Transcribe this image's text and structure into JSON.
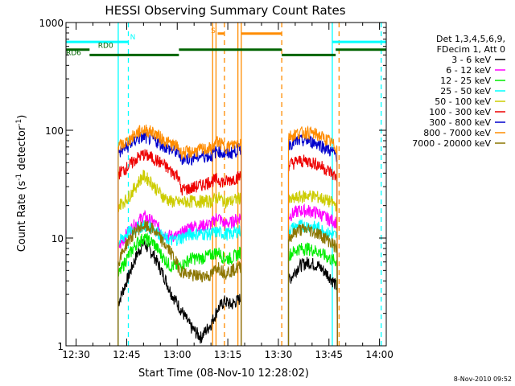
{
  "chart_data": {
    "type": "line",
    "title": "HESSI Observing Summary Count Rates",
    "xlabel": "Start Time (08-Nov-10 12:28:02)",
    "ylabel_main": "Count Rate (s",
    "ylabel_sup1": "-1",
    "ylabel_mid": " detector",
    "ylabel_sup2": "-1",
    "ylabel_end": ")",
    "yscale": "log",
    "ylim": [
      1,
      1000
    ],
    "xlim_minutes": [
      -3,
      92
    ],
    "xticks": [
      {
        "m": 0,
        "label": "12:30"
      },
      {
        "m": 15,
        "label": "12:45"
      },
      {
        "m": 30,
        "label": "13:00"
      },
      {
        "m": 45,
        "label": "13:15"
      },
      {
        "m": 60,
        "label": "13:30"
      },
      {
        "m": 75,
        "label": "13:45"
      },
      {
        "m": 90,
        "label": "14:00"
      }
    ],
    "yticks": [
      {
        "v": 1,
        "label": "1"
      },
      {
        "v": 10,
        "label": "10"
      },
      {
        "v": 100,
        "label": "100"
      },
      {
        "v": 1000,
        "label": "1000"
      }
    ],
    "legend": {
      "placement": "right",
      "header": [
        "Det 1,3,4,5,6,9,",
        "FDecim 1, Att 0"
      ],
      "entries": [
        {
          "label": "3 - 6 keV",
          "color": "#000000"
        },
        {
          "label": "6 - 12 keV",
          "color": "#ff00ff"
        },
        {
          "label": "12 - 25 keV",
          "color": "#00ee00"
        },
        {
          "label": "25 - 50 keV",
          "color": "#00ffff"
        },
        {
          "label": "50 - 100 keV",
          "color": "#cccc00"
        },
        {
          "label": "100 - 300 keV",
          "color": "#ee0000"
        },
        {
          "label": "300 - 800 keV",
          "color": "#0000cc"
        },
        {
          "label": "800 - 7000 keV",
          "color": "#ff8c00"
        },
        {
          "label": "7000 - 20000 keV",
          "color": "#8b7500"
        }
      ]
    },
    "series": [
      {
        "name": "3 - 6 keV",
        "color": "#000000",
        "values": [
          {
            "m": 12.5,
            "v": 2.5
          },
          {
            "m": 15,
            "v": 4
          },
          {
            "m": 18,
            "v": 7
          },
          {
            "m": 20,
            "v": 9
          },
          {
            "m": 23,
            "v": 7
          },
          {
            "m": 26,
            "v": 4.5
          },
          {
            "m": 28,
            "v": 3.2
          },
          {
            "m": 31,
            "v": 2.2
          },
          {
            "m": 34,
            "v": 1.5
          },
          {
            "m": 37,
            "v": 1.2
          },
          {
            "m": 40,
            "v": 1.6
          },
          {
            "m": 42,
            "v": 2.2
          },
          {
            "m": 44,
            "v": 2.6
          },
          {
            "m": 46,
            "v": 2.4
          },
          {
            "m": 49,
            "v": 2.8
          },
          {
            "m": 63,
            "v": 4
          },
          {
            "m": 66,
            "v": 5.5
          },
          {
            "m": 69,
            "v": 6
          },
          {
            "m": 72,
            "v": 5.5
          },
          {
            "m": 75,
            "v": 4.5
          },
          {
            "m": 77.5,
            "v": 3.5
          }
        ]
      },
      {
        "name": "6 - 12 keV",
        "color": "#ff00ff",
        "values": [
          {
            "m": 12.5,
            "v": 8
          },
          {
            "m": 15,
            "v": 11
          },
          {
            "m": 18,
            "v": 14
          },
          {
            "m": 20,
            "v": 16
          },
          {
            "m": 23,
            "v": 14
          },
          {
            "m": 26,
            "v": 11
          },
          {
            "m": 28,
            "v": 10.5
          },
          {
            "m": 30.5,
            "v": 10.5
          },
          {
            "m": 34,
            "v": 13
          },
          {
            "m": 37,
            "v": 13
          },
          {
            "m": 40,
            "v": 13.5
          },
          {
            "m": 42,
            "v": 16
          },
          {
            "m": 44,
            "v": 13.5
          },
          {
            "m": 46,
            "v": 14
          },
          {
            "m": 49,
            "v": 16
          },
          {
            "m": 63,
            "v": 16
          },
          {
            "m": 66,
            "v": 18
          },
          {
            "m": 69,
            "v": 18
          },
          {
            "m": 72,
            "v": 17
          },
          {
            "m": 75,
            "v": 15
          },
          {
            "m": 77.5,
            "v": 14
          }
        ]
      },
      {
        "name": "12 - 25 keV",
        "color": "#00ee00",
        "values": [
          {
            "m": 12.5,
            "v": 4.5
          },
          {
            "m": 15,
            "v": 6.5
          },
          {
            "m": 18,
            "v": 9
          },
          {
            "m": 20,
            "v": 10
          },
          {
            "m": 23,
            "v": 9
          },
          {
            "m": 26,
            "v": 6.5
          },
          {
            "m": 28,
            "v": 5.5
          },
          {
            "m": 31,
            "v": 5.5
          },
          {
            "m": 34,
            "v": 6.5
          },
          {
            "m": 37,
            "v": 6.5
          },
          {
            "m": 40,
            "v": 7
          },
          {
            "m": 42,
            "v": 7.5
          },
          {
            "m": 44,
            "v": 6.5
          },
          {
            "m": 46,
            "v": 6.5
          },
          {
            "m": 49,
            "v": 7.5
          },
          {
            "m": 63,
            "v": 7
          },
          {
            "m": 66,
            "v": 8
          },
          {
            "m": 69,
            "v": 8
          },
          {
            "m": 72,
            "v": 7.5
          },
          {
            "m": 75,
            "v": 6.5
          },
          {
            "m": 77.5,
            "v": 6
          }
        ]
      },
      {
        "name": "25 - 50 keV",
        "color": "#00ffff",
        "values": [
          {
            "m": 12.5,
            "v": 9
          },
          {
            "m": 15,
            "v": 11
          },
          {
            "m": 18,
            "v": 12.5
          },
          {
            "m": 20,
            "v": 13
          },
          {
            "m": 23,
            "v": 12.5
          },
          {
            "m": 26,
            "v": 10
          },
          {
            "m": 28,
            "v": 9.5
          },
          {
            "m": 31,
            "v": 10
          },
          {
            "m": 34,
            "v": 11
          },
          {
            "m": 37,
            "v": 11
          },
          {
            "m": 40,
            "v": 11
          },
          {
            "m": 42,
            "v": 11.5
          },
          {
            "m": 44,
            "v": 11
          },
          {
            "m": 46,
            "v": 11
          },
          {
            "m": 49,
            "v": 12
          },
          {
            "m": 63,
            "v": 12
          },
          {
            "m": 66,
            "v": 13
          },
          {
            "m": 69,
            "v": 13
          },
          {
            "m": 72,
            "v": 12.5
          },
          {
            "m": 75,
            "v": 11
          },
          {
            "m": 77.5,
            "v": 10.5
          }
        ]
      },
      {
        "name": "50 - 100 keV",
        "color": "#cccc00",
        "values": [
          {
            "m": 12.5,
            "v": 20
          },
          {
            "m": 15,
            "v": 23
          },
          {
            "m": 17,
            "v": 28
          },
          {
            "m": 19,
            "v": 35
          },
          {
            "m": 20,
            "v": 38
          },
          {
            "m": 22,
            "v": 34
          },
          {
            "m": 24,
            "v": 28
          },
          {
            "m": 26,
            "v": 24
          },
          {
            "m": 28,
            "v": 22
          },
          {
            "m": 30.5,
            "v": 21.5
          },
          {
            "m": 34,
            "v": 22
          },
          {
            "m": 37,
            "v": 22
          },
          {
            "m": 40,
            "v": 22
          },
          {
            "m": 42,
            "v": 24
          },
          {
            "m": 44,
            "v": 22
          },
          {
            "m": 46,
            "v": 22
          },
          {
            "m": 49,
            "v": 24
          },
          {
            "m": 63,
            "v": 22
          },
          {
            "m": 66,
            "v": 24
          },
          {
            "m": 69,
            "v": 25
          },
          {
            "m": 72,
            "v": 24
          },
          {
            "m": 75,
            "v": 22
          },
          {
            "m": 77.5,
            "v": 20
          }
        ]
      },
      {
        "name": "100 - 300 keV",
        "color": "#ee0000",
        "values": [
          {
            "m": 12.5,
            "v": 40
          },
          {
            "m": 15,
            "v": 45
          },
          {
            "m": 18,
            "v": 55
          },
          {
            "m": 20,
            "v": 60
          },
          {
            "m": 23,
            "v": 55
          },
          {
            "m": 26,
            "v": 48
          },
          {
            "m": 28,
            "v": 42
          },
          {
            "m": 30.5,
            "v": 38
          },
          {
            "m": 31,
            "v": 28
          },
          {
            "m": 34,
            "v": 29
          },
          {
            "m": 37,
            "v": 31
          },
          {
            "m": 40,
            "v": 34
          },
          {
            "m": 42,
            "v": 35
          },
          {
            "m": 44,
            "v": 33
          },
          {
            "m": 46,
            "v": 35
          },
          {
            "m": 49,
            "v": 38
          },
          {
            "m": 63,
            "v": 48
          },
          {
            "m": 66,
            "v": 52
          },
          {
            "m": 69,
            "v": 52
          },
          {
            "m": 72,
            "v": 48
          },
          {
            "m": 75,
            "v": 42
          },
          {
            "m": 77.5,
            "v": 36
          }
        ]
      },
      {
        "name": "300 - 800 keV",
        "color": "#0000cc",
        "values": [
          {
            "m": 12.5,
            "v": 62
          },
          {
            "m": 15,
            "v": 70
          },
          {
            "m": 18,
            "v": 83
          },
          {
            "m": 20,
            "v": 87
          },
          {
            "m": 23,
            "v": 82
          },
          {
            "m": 26,
            "v": 72
          },
          {
            "m": 28,
            "v": 66
          },
          {
            "m": 30.5,
            "v": 62
          },
          {
            "m": 31,
            "v": 55
          },
          {
            "m": 34,
            "v": 55
          },
          {
            "m": 37,
            "v": 58
          },
          {
            "m": 40,
            "v": 58
          },
          {
            "m": 42,
            "v": 66
          },
          {
            "m": 44,
            "v": 60
          },
          {
            "m": 46,
            "v": 62
          },
          {
            "m": 49,
            "v": 68
          },
          {
            "m": 63,
            "v": 75
          },
          {
            "m": 66,
            "v": 80
          },
          {
            "m": 69,
            "v": 80
          },
          {
            "m": 72,
            "v": 75
          },
          {
            "m": 75,
            "v": 66
          },
          {
            "m": 77.5,
            "v": 58
          }
        ]
      },
      {
        "name": "800 - 7000 keV",
        "color": "#ff8c00",
        "values": [
          {
            "m": 12.5,
            "v": 70
          },
          {
            "m": 15,
            "v": 78
          },
          {
            "m": 18,
            "v": 95
          },
          {
            "m": 20,
            "v": 102
          },
          {
            "m": 23,
            "v": 96
          },
          {
            "m": 26,
            "v": 82
          },
          {
            "m": 28,
            "v": 75
          },
          {
            "m": 30.5,
            "v": 70
          },
          {
            "m": 31,
            "v": 62
          },
          {
            "m": 34,
            "v": 63
          },
          {
            "m": 37,
            "v": 66
          },
          {
            "m": 40,
            "v": 68
          },
          {
            "m": 42,
            "v": 80
          },
          {
            "m": 44,
            "v": 70
          },
          {
            "m": 46,
            "v": 72
          },
          {
            "m": 49,
            "v": 80
          },
          {
            "m": 63,
            "v": 88
          },
          {
            "m": 66,
            "v": 95
          },
          {
            "m": 69,
            "v": 96
          },
          {
            "m": 72,
            "v": 90
          },
          {
            "m": 75,
            "v": 80
          },
          {
            "m": 77.5,
            "v": 68
          }
        ]
      },
      {
        "name": "7000 - 20000 keV",
        "color": "#8b7500",
        "values": [
          {
            "m": 12.5,
            "v": 6
          },
          {
            "m": 15,
            "v": 9
          },
          {
            "m": 18,
            "v": 12
          },
          {
            "m": 20,
            "v": 13
          },
          {
            "m": 23,
            "v": 12
          },
          {
            "m": 26,
            "v": 9
          },
          {
            "m": 28,
            "v": 7.5
          },
          {
            "m": 31,
            "v": 5
          },
          {
            "m": 34,
            "v": 4.5
          },
          {
            "m": 37,
            "v": 4.5
          },
          {
            "m": 40,
            "v": 4.5
          },
          {
            "m": 42,
            "v": 5.5
          },
          {
            "m": 44,
            "v": 4.8
          },
          {
            "m": 46,
            "v": 5
          },
          {
            "m": 49,
            "v": 5.5
          },
          {
            "m": 63,
            "v": 10
          },
          {
            "m": 66,
            "v": 12
          },
          {
            "m": 69,
            "v": 12
          },
          {
            "m": 72,
            "v": 11
          },
          {
            "m": 75,
            "v": 9.5
          },
          {
            "m": 77.5,
            "v": 8
          }
        ]
      }
    ],
    "annotations": [
      {
        "text": "RD0",
        "m": 6.5,
        "v": 580,
        "color": "#006400"
      },
      {
        "text": "RD6",
        "m": -3,
        "v": 500,
        "color": "#006400"
      },
      {
        "text": "N",
        "m": 16,
        "v": 700,
        "color": "#00ffff"
      },
      {
        "text": "S",
        "m": 40,
        "v": 800,
        "color": "#ff8c00"
      }
    ],
    "status_segments": [
      {
        "color": "#00ffff",
        "v": 660,
        "from": -3,
        "to": 15.5
      },
      {
        "color": "#00ffff",
        "v": 660,
        "from": 76,
        "to": 92
      },
      {
        "color": "#006400",
        "v": 560,
        "from": -3,
        "to": 4
      },
      {
        "color": "#006400",
        "v": 500,
        "from": 4,
        "to": 30.5
      },
      {
        "color": "#006400",
        "v": 560,
        "from": 30.5,
        "to": 61
      },
      {
        "color": "#006400",
        "v": 500,
        "from": 61,
        "to": 77
      },
      {
        "color": "#006400",
        "v": 560,
        "from": 77,
        "to": 92
      },
      {
        "color": "#ff8c00",
        "v": 790,
        "from": 42,
        "to": 44
      },
      {
        "color": "#ff8c00",
        "v": 790,
        "from": 49,
        "to": 61
      }
    ],
    "vlines": [
      {
        "m": 12.5,
        "color": "#00ffff",
        "dashed": false
      },
      {
        "m": 15.5,
        "color": "#00ffff",
        "dashed": true
      },
      {
        "m": 76,
        "color": "#00ffff",
        "dashed": false
      },
      {
        "m": 90.5,
        "color": "#00ffff",
        "dashed": true
      },
      {
        "m": 40.5,
        "color": "#ff8c00",
        "dashed": false
      },
      {
        "m": 41.5,
        "color": "#ff8c00",
        "dashed": false
      },
      {
        "m": 44,
        "color": "#ff8c00",
        "dashed": true
      },
      {
        "m": 48,
        "color": "#ff8c00",
        "dashed": false
      },
      {
        "m": 49,
        "color": "#ff8c00",
        "dashed": false
      },
      {
        "m": 61,
        "color": "#ff8c00",
        "dashed": true
      },
      {
        "m": 78,
        "color": "#ff8c00",
        "dashed": true
      }
    ],
    "timestamp": "8-Nov-2010 09:52"
  }
}
